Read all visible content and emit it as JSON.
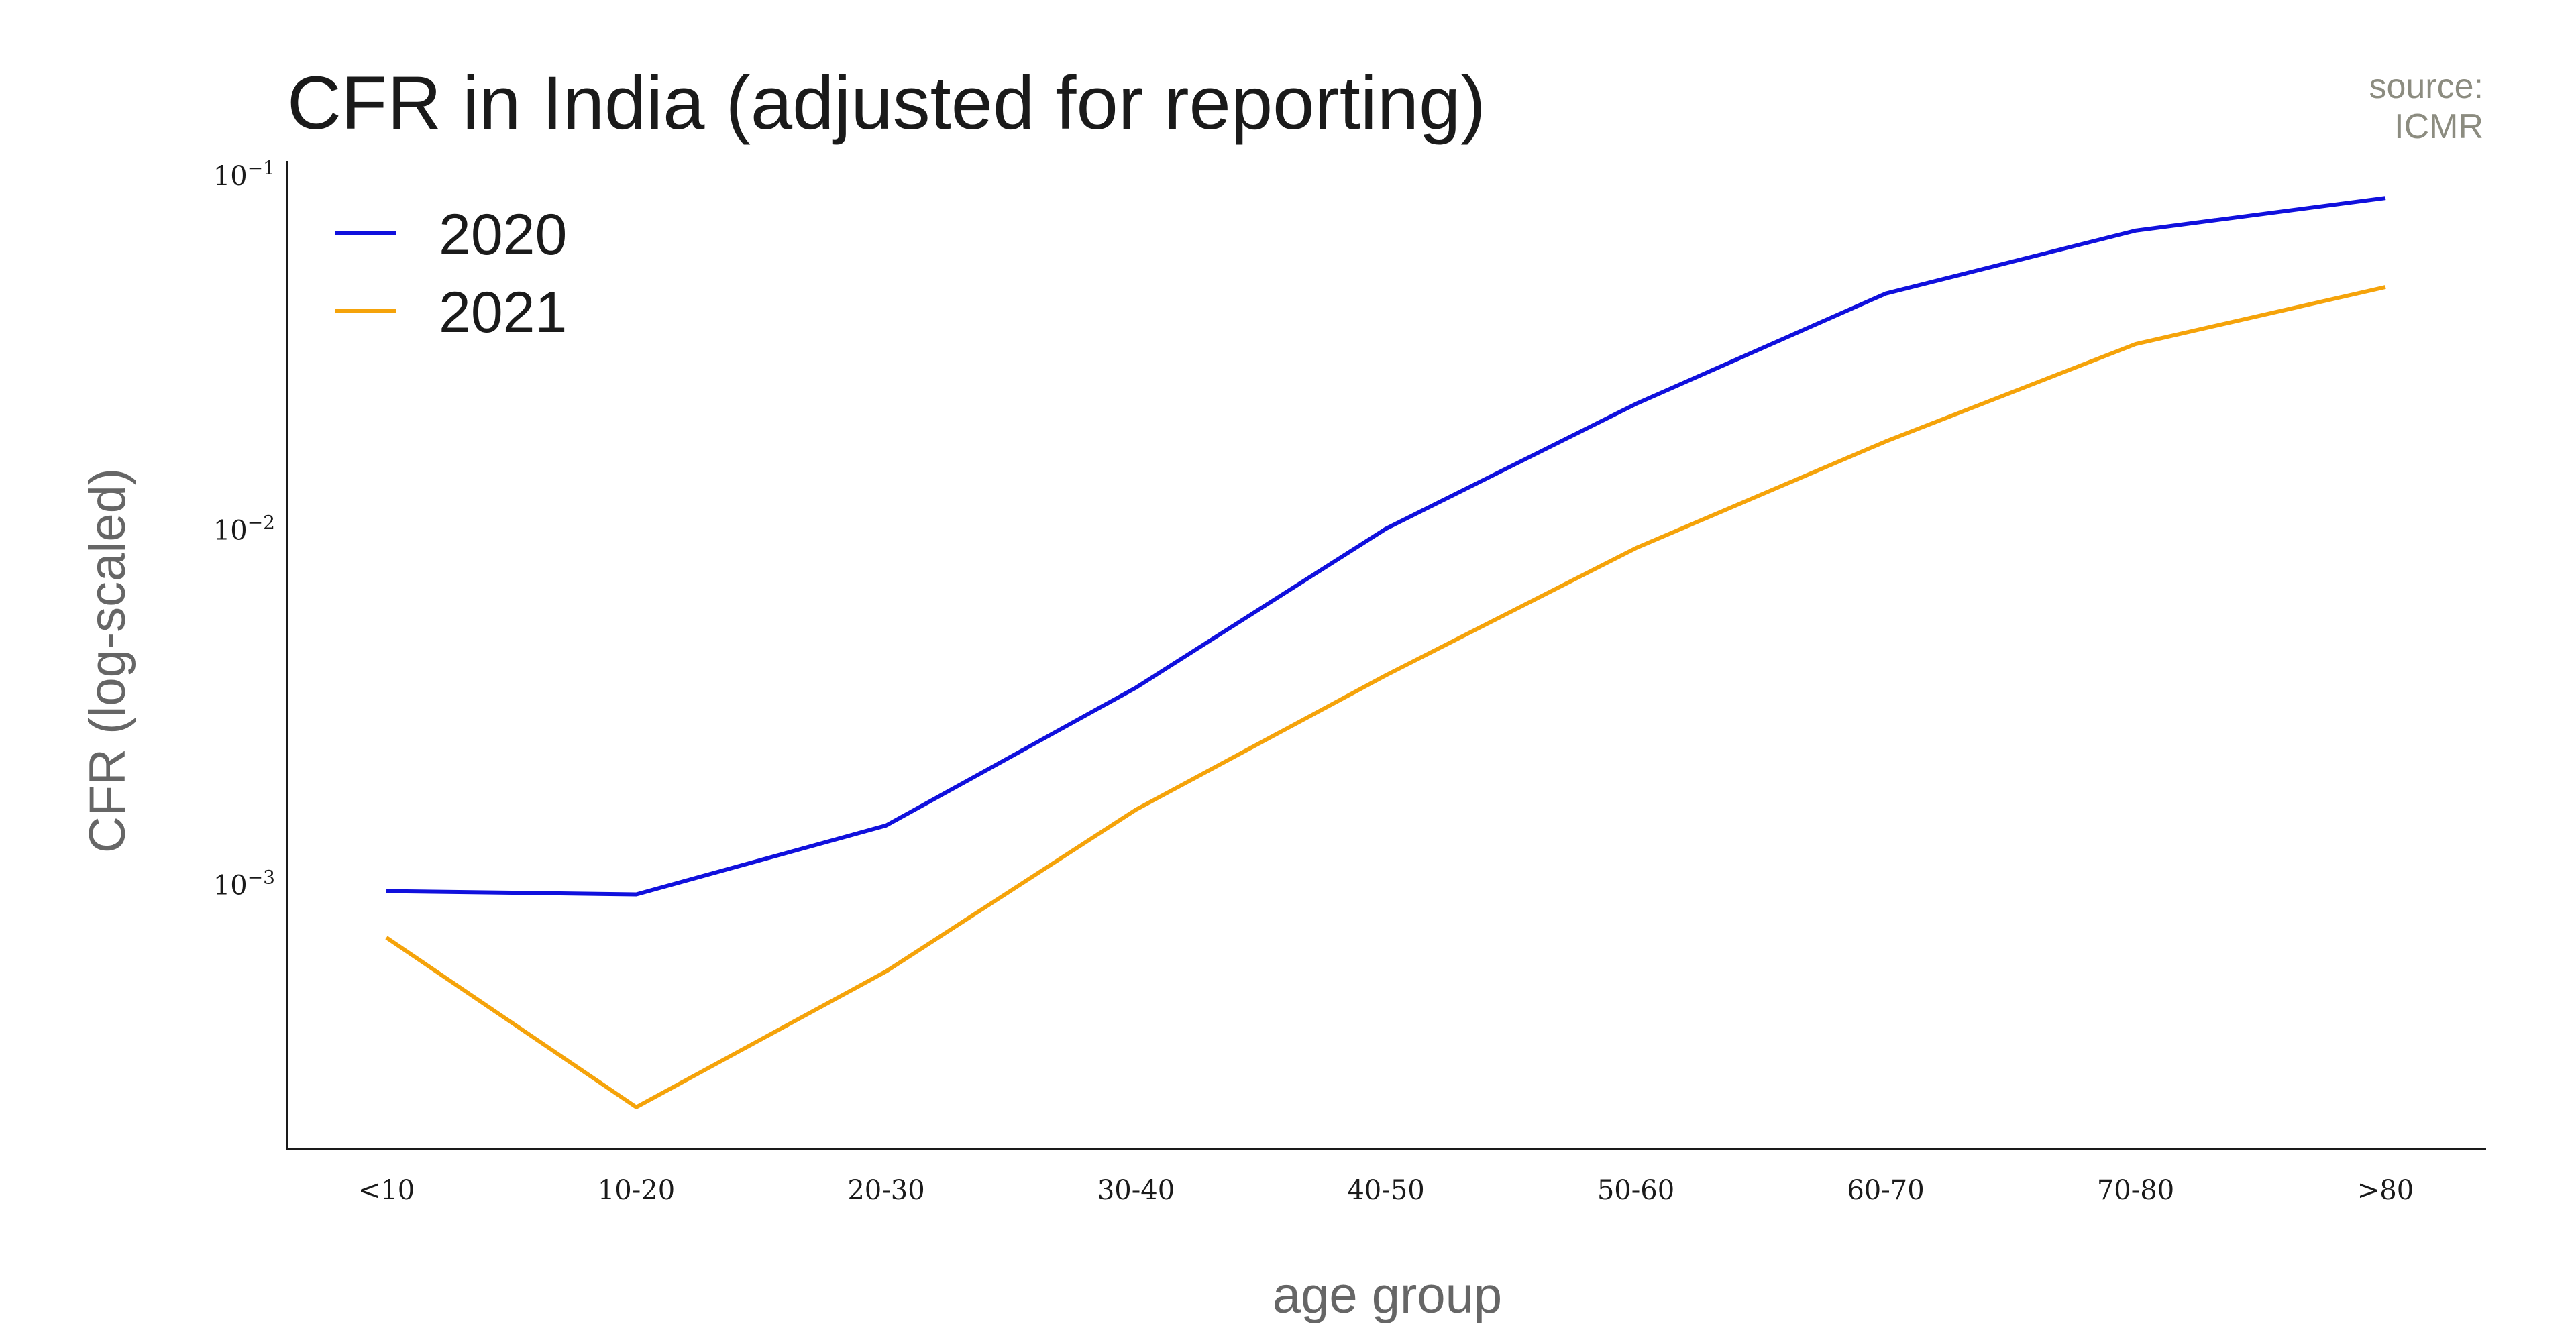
{
  "chart_data": {
    "type": "line",
    "title": "CFR in India (adjusted for reporting)",
    "source_label": "source:",
    "source_name": "ICMR",
    "xlabel": "age group",
    "ylabel": "CFR (log-scaled)",
    "yscale": "log",
    "ylim": [
      0.00018,
      0.11
    ],
    "yticks": [
      {
        "value": 0.1,
        "base": "10",
        "exp": "−1"
      },
      {
        "value": 0.01,
        "base": "10",
        "exp": "−2"
      },
      {
        "value": 0.001,
        "base": "10",
        "exp": "−3"
      }
    ],
    "grid": false,
    "legend_position": "top-left",
    "categories": [
      "<10",
      "10-20",
      "20-30",
      "30-40",
      "40-50",
      "50-60",
      "60-70",
      "70-80",
      ">80"
    ],
    "series": [
      {
        "name": "2020",
        "color": "#1010dd",
        "values": [
          0.00096,
          0.00094,
          0.00147,
          0.0036,
          0.0101,
          0.0227,
          0.0465,
          0.07,
          0.0865
        ]
      },
      {
        "name": "2021",
        "color": "#f5a30a",
        "values": [
          0.00071,
          0.000236,
          0.00057,
          0.00163,
          0.0039,
          0.0089,
          0.0178,
          0.0335,
          0.0485
        ]
      }
    ]
  }
}
